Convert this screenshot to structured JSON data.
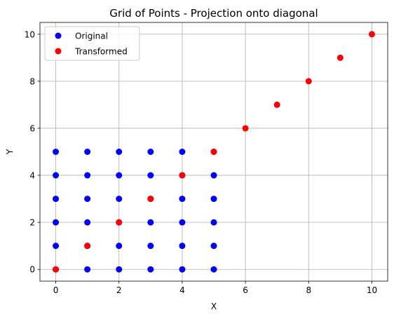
{
  "chart_data": {
    "type": "scatter",
    "title": "Grid of Points - Projection onto diagonal",
    "xlabel": "X",
    "ylabel": "Y",
    "xlim": [
      -0.5,
      10.5
    ],
    "ylim": [
      -0.5,
      10.5
    ],
    "x_ticks": [
      0,
      2,
      4,
      6,
      8,
      10
    ],
    "y_ticks": [
      0,
      2,
      4,
      6,
      8,
      10
    ],
    "grid": true,
    "legend_position": "top-left",
    "series": [
      {
        "name": "Original",
        "color": "#0000ff",
        "points": [
          [
            0,
            0
          ],
          [
            0,
            1
          ],
          [
            0,
            2
          ],
          [
            0,
            3
          ],
          [
            0,
            4
          ],
          [
            0,
            5
          ],
          [
            1,
            0
          ],
          [
            1,
            1
          ],
          [
            1,
            2
          ],
          [
            1,
            3
          ],
          [
            1,
            4
          ],
          [
            1,
            5
          ],
          [
            2,
            0
          ],
          [
            2,
            1
          ],
          [
            2,
            2
          ],
          [
            2,
            3
          ],
          [
            2,
            4
          ],
          [
            2,
            5
          ],
          [
            3,
            0
          ],
          [
            3,
            1
          ],
          [
            3,
            2
          ],
          [
            3,
            3
          ],
          [
            3,
            4
          ],
          [
            3,
            5
          ],
          [
            4,
            0
          ],
          [
            4,
            1
          ],
          [
            4,
            2
          ],
          [
            4,
            3
          ],
          [
            4,
            4
          ],
          [
            4,
            5
          ],
          [
            5,
            0
          ],
          [
            5,
            1
          ],
          [
            5,
            2
          ],
          [
            5,
            3
          ],
          [
            5,
            4
          ],
          [
            5,
            5
          ]
        ]
      },
      {
        "name": "Transformed",
        "color": "#ff0000",
        "points": [
          [
            0,
            0
          ],
          [
            1,
            1
          ],
          [
            2,
            2
          ],
          [
            3,
            3
          ],
          [
            4,
            4
          ],
          [
            5,
            5
          ],
          [
            6,
            6
          ],
          [
            7,
            7
          ],
          [
            8,
            8
          ],
          [
            9,
            9
          ],
          [
            10,
            10
          ]
        ]
      }
    ]
  }
}
